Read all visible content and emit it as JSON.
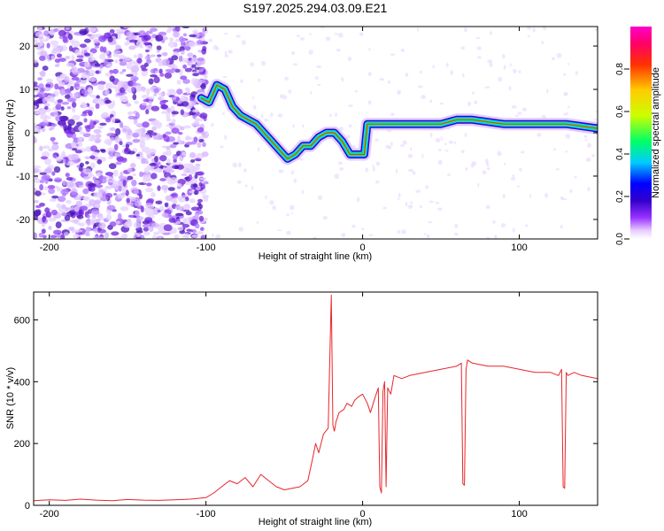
{
  "title": "S197.2025.294.03.09.E21",
  "colors": {
    "snr_line": "#e8252b",
    "axis": "#000000",
    "colormap": [
      "#ffffff",
      "#e8ccff",
      "#9933ff",
      "#3300cc",
      "#0000ff",
      "#00ccff",
      "#00ff66",
      "#ccff00",
      "#ffcc00",
      "#ff3300",
      "#ff0066",
      "#ff00cc"
    ]
  },
  "chart_data": [
    {
      "type": "heatmap",
      "xlabel": "Height of straight line (km)",
      "ylabel": "Frequency (Hz)",
      "xlim": [
        -210,
        150
      ],
      "ylim": [
        -24.5,
        24.5
      ],
      "x_ticks": [
        -200,
        -100,
        0,
        100
      ],
      "x_tick_labels": [
        "-200",
        "-100",
        "0",
        "100"
      ],
      "y_ticks": [
        -20,
        -10,
        0,
        10,
        20
      ],
      "y_tick_labels": [
        "-20",
        "-10",
        "0",
        "10",
        "20"
      ],
      "grid": false,
      "colorbar": {
        "label": "Normalized spectral amplitude",
        "range": [
          0.0,
          1.0
        ],
        "ticks": [
          0.0,
          0.2,
          0.4,
          0.6,
          0.8
        ],
        "tick_labels": [
          "0.0",
          "0.2",
          "0.4",
          "0.6",
          "0.8"
        ]
      },
      "ridge": {
        "x": [
          -103,
          -98,
          -93,
          -88,
          -83,
          -78,
          -73,
          -68,
          -63,
          -58,
          -53,
          -48,
          -43,
          -38,
          -33,
          -28,
          -23,
          -18,
          -13,
          -8,
          -3,
          1,
          3,
          10,
          30,
          50,
          60,
          70,
          90,
          110,
          130,
          150
        ],
        "y": [
          8,
          7,
          11,
          10,
          6,
          4,
          3,
          2,
          0,
          -2,
          -4,
          -6,
          -5,
          -3,
          -3,
          -1,
          0,
          0,
          -2,
          -5,
          -5,
          -5,
          2,
          2,
          2,
          2,
          3,
          3,
          2,
          2,
          2,
          1
        ]
      }
    },
    {
      "type": "line",
      "xlabel": "Height of straight line (km)",
      "ylabel": "SNR (10 * v/v)",
      "xlim": [
        -210,
        150
      ],
      "ylim": [
        0,
        690
      ],
      "x_ticks": [
        -200,
        -100,
        0,
        100
      ],
      "x_tick_labels": [
        "-200",
        "-100",
        "0",
        "100"
      ],
      "y_ticks": [
        0,
        200,
        400,
        600
      ],
      "y_tick_labels": [
        "0",
        "200",
        "400",
        "600"
      ],
      "grid": false,
      "series": [
        {
          "x": [
            -210,
            -200,
            -190,
            -180,
            -170,
            -160,
            -150,
            -140,
            -130,
            -120,
            -110,
            -100,
            -95,
            -90,
            -85,
            -80,
            -75,
            -70,
            -65,
            -60,
            -55,
            -50,
            -45,
            -40,
            -35,
            -32,
            -30,
            -28,
            -25,
            -22,
            -20,
            -19,
            -18,
            -17,
            -15,
            -12,
            -10,
            -7,
            -5,
            -3,
            0,
            3,
            5,
            8,
            10,
            11,
            12,
            13,
            14,
            15,
            16,
            18,
            20,
            25,
            30,
            40,
            50,
            60,
            63,
            64,
            65,
            66,
            67,
            70,
            80,
            90,
            100,
            110,
            120,
            125,
            127,
            128,
            129,
            130,
            131,
            135,
            140,
            150
          ],
          "y": [
            15,
            18,
            16,
            20,
            17,
            15,
            19,
            17,
            16,
            18,
            20,
            25,
            40,
            60,
            80,
            70,
            90,
            60,
            100,
            80,
            60,
            50,
            55,
            60,
            80,
            150,
            200,
            170,
            230,
            250,
            680,
            260,
            240,
            270,
            300,
            310,
            330,
            320,
            340,
            350,
            360,
            330,
            300,
            350,
            380,
            60,
            40,
            370,
            400,
            60,
            380,
            360,
            420,
            410,
            420,
            430,
            440,
            450,
            460,
            70,
            65,
            440,
            470,
            460,
            450,
            450,
            440,
            430,
            430,
            420,
            440,
            60,
            55,
            430,
            420,
            430,
            420,
            410
          ]
        }
      ]
    }
  ]
}
